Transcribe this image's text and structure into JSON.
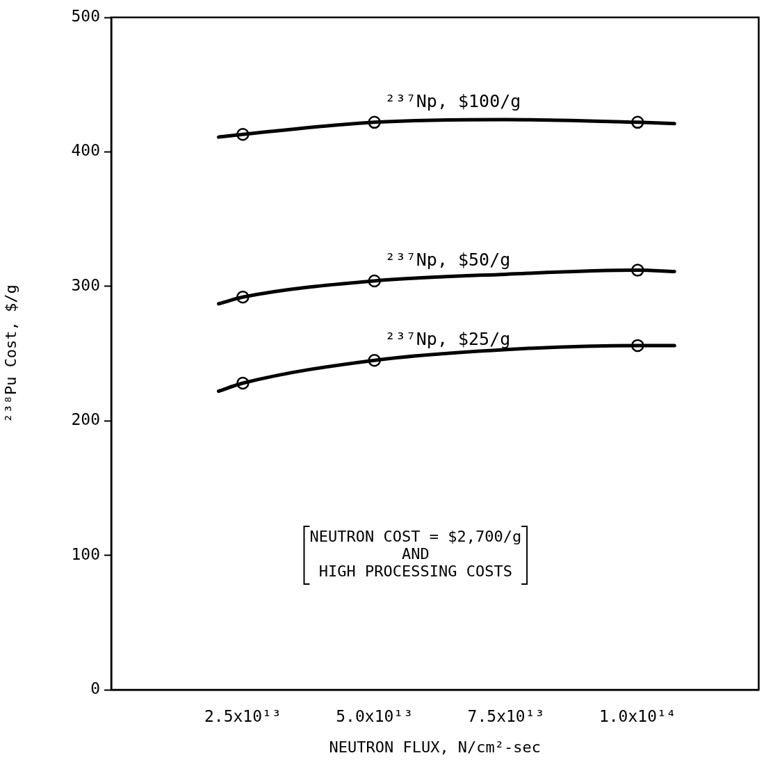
{
  "chart_data": {
    "type": "line",
    "xlabel": "NEUTRON FLUX, N/cm²-sec",
    "ylabel": "²³⁸Pu Cost, $/g",
    "xlim": [
      0,
      123000000000000.0
    ],
    "xticks": [
      {
        "value": 25000000000000.0,
        "label": "2.5x10¹³"
      },
      {
        "value": 50000000000000.0,
        "label": "5.0x10¹³"
      },
      {
        "value": 75000000000000.0,
        "label": "7.5x10¹³"
      },
      {
        "value": 100000000000000.0,
        "label": "1.0x10¹⁴"
      }
    ],
    "ylim": [
      0,
      500
    ],
    "yticks": [
      0,
      100,
      200,
      300,
      400,
      500
    ],
    "grid": false,
    "legend": false,
    "marker": "circle",
    "line_style": "solid",
    "series": [
      {
        "name": "²³⁷Np, $100/g",
        "color": "#000000",
        "marker": "none",
        "x": [
          20400000000000.0,
          25000000000000.0,
          50000000000000.0,
          75000000000000.0,
          100000000000000.0,
          107000000000000.0
        ],
        "values": [
          411,
          413,
          422,
          424,
          422,
          421
        ]
      },
      {
        "name": "²³⁷Np, $50/g",
        "color": "#000000",
        "marker": "none",
        "x": [
          20400000000000.0,
          25000000000000.0,
          50000000000000.0,
          75000000000000.0,
          100000000000000.0,
          107000000000000.0
        ],
        "values": [
          287,
          292,
          304,
          309,
          312,
          311
        ]
      },
      {
        "name": "²³⁷Np, $25/g",
        "color": "#000000",
        "marker": "none",
        "x": [
          20400000000000.0,
          25000000000000.0,
          50000000000000.0,
          75000000000000.0,
          100000000000000.0,
          107000000000000.0
        ],
        "values": [
          222,
          228,
          245,
          253,
          256,
          256
        ]
      },
      {
        "type": "scatter",
        "color": "#000000",
        "x": [
          25000000000000.0,
          50000000000000.0,
          100000000000000.0
        ],
        "values": [
          413,
          422,
          422
        ]
      },
      {
        "type": "scatter",
        "color": "#000000",
        "x": [
          25000000000000.0,
          50000000000000.0,
          100000000000000.0
        ],
        "values": [
          292,
          304,
          312
        ]
      },
      {
        "type": "scatter",
        "color": "#000000",
        "x": [
          25000000000000.0,
          50000000000000.0,
          100000000000000.0
        ],
        "values": [
          228,
          245,
          256
        ]
      }
    ],
    "annotations": [
      "NEUTRON COST = $2,700/g\nAND\nHIGH PROCESSING COSTS"
    ]
  }
}
